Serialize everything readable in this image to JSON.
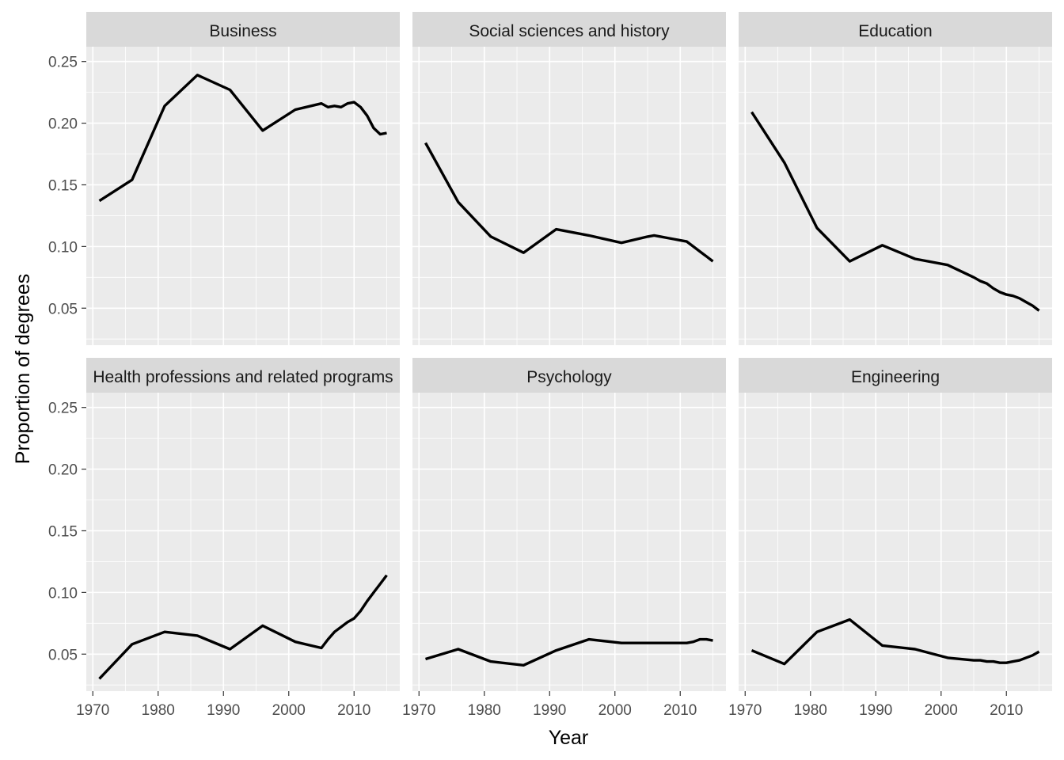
{
  "chart_data": {
    "type": "line",
    "xlabel": "Year",
    "ylabel": "Proportion of degrees",
    "xlim": [
      1969,
      2017
    ],
    "ylim": [
      0.02,
      0.262
    ],
    "x_ticks": [
      1970,
      1980,
      1990,
      2000,
      2010
    ],
    "y_ticks": [
      0.05,
      0.1,
      0.15,
      0.2,
      0.25
    ],
    "x_tick_labels": [
      "1970",
      "1980",
      "1990",
      "2000",
      "2010"
    ],
    "y_tick_labels": [
      "0.05",
      "0.10",
      "0.15",
      "0.20",
      "0.25"
    ],
    "grid": true,
    "layout": "facets 2x3, shared axes",
    "panels": [
      {
        "title": "Business",
        "x": [
          1971,
          1976,
          1981,
          1986,
          1991,
          1996,
          2001,
          2005,
          2006,
          2007,
          2008,
          2009,
          2010,
          2011,
          2012,
          2013,
          2014,
          2015
        ],
        "y": [
          0.137,
          0.154,
          0.214,
          0.239,
          0.227,
          0.194,
          0.211,
          0.216,
          0.213,
          0.214,
          0.213,
          0.216,
          0.217,
          0.213,
          0.206,
          0.196,
          0.191,
          0.192
        ]
      },
      {
        "title": "Social sciences and history",
        "x": [
          1971,
          1976,
          1981,
          1986,
          1991,
          1996,
          2001,
          2005,
          2006,
          2007,
          2008,
          2009,
          2010,
          2011,
          2012,
          2013,
          2014,
          2015
        ],
        "y": [
          0.184,
          0.136,
          0.108,
          0.095,
          0.114,
          0.109,
          0.103,
          0.108,
          0.109,
          0.108,
          0.107,
          0.106,
          0.105,
          0.104,
          0.1,
          0.096,
          0.092,
          0.088
        ]
      },
      {
        "title": "Education",
        "x": [
          1971,
          1976,
          1981,
          1986,
          1991,
          1996,
          2001,
          2005,
          2006,
          2007,
          2008,
          2009,
          2010,
          2011,
          2012,
          2013,
          2014,
          2015
        ],
        "y": [
          0.209,
          0.168,
          0.115,
          0.088,
          0.101,
          0.09,
          0.085,
          0.075,
          0.072,
          0.07,
          0.066,
          0.063,
          0.061,
          0.06,
          0.058,
          0.055,
          0.052,
          0.048
        ]
      },
      {
        "title": "Health professions and related programs",
        "x": [
          1971,
          1976,
          1981,
          1986,
          1991,
          1996,
          2001,
          2005,
          2006,
          2007,
          2008,
          2009,
          2010,
          2011,
          2012,
          2013,
          2014,
          2015
        ],
        "y": [
          0.03,
          0.058,
          0.068,
          0.065,
          0.054,
          0.073,
          0.06,
          0.055,
          0.062,
          0.068,
          0.072,
          0.076,
          0.079,
          0.085,
          0.093,
          0.1,
          0.107,
          0.114
        ]
      },
      {
        "title": "Psychology",
        "x": [
          1971,
          1976,
          1981,
          1986,
          1991,
          1996,
          2001,
          2005,
          2006,
          2007,
          2008,
          2009,
          2010,
          2011,
          2012,
          2013,
          2014,
          2015
        ],
        "y": [
          0.046,
          0.054,
          0.044,
          0.041,
          0.053,
          0.062,
          0.059,
          0.059,
          0.059,
          0.059,
          0.059,
          0.059,
          0.059,
          0.059,
          0.06,
          0.062,
          0.062,
          0.061
        ]
      },
      {
        "title": "Engineering",
        "x": [
          1971,
          1976,
          1981,
          1986,
          1991,
          1996,
          2001,
          2005,
          2006,
          2007,
          2008,
          2009,
          2010,
          2011,
          2012,
          2013,
          2014,
          2015
        ],
        "y": [
          0.053,
          0.042,
          0.068,
          0.078,
          0.057,
          0.054,
          0.047,
          0.045,
          0.045,
          0.044,
          0.044,
          0.043,
          0.043,
          0.044,
          0.045,
          0.047,
          0.049,
          0.052
        ]
      }
    ]
  }
}
